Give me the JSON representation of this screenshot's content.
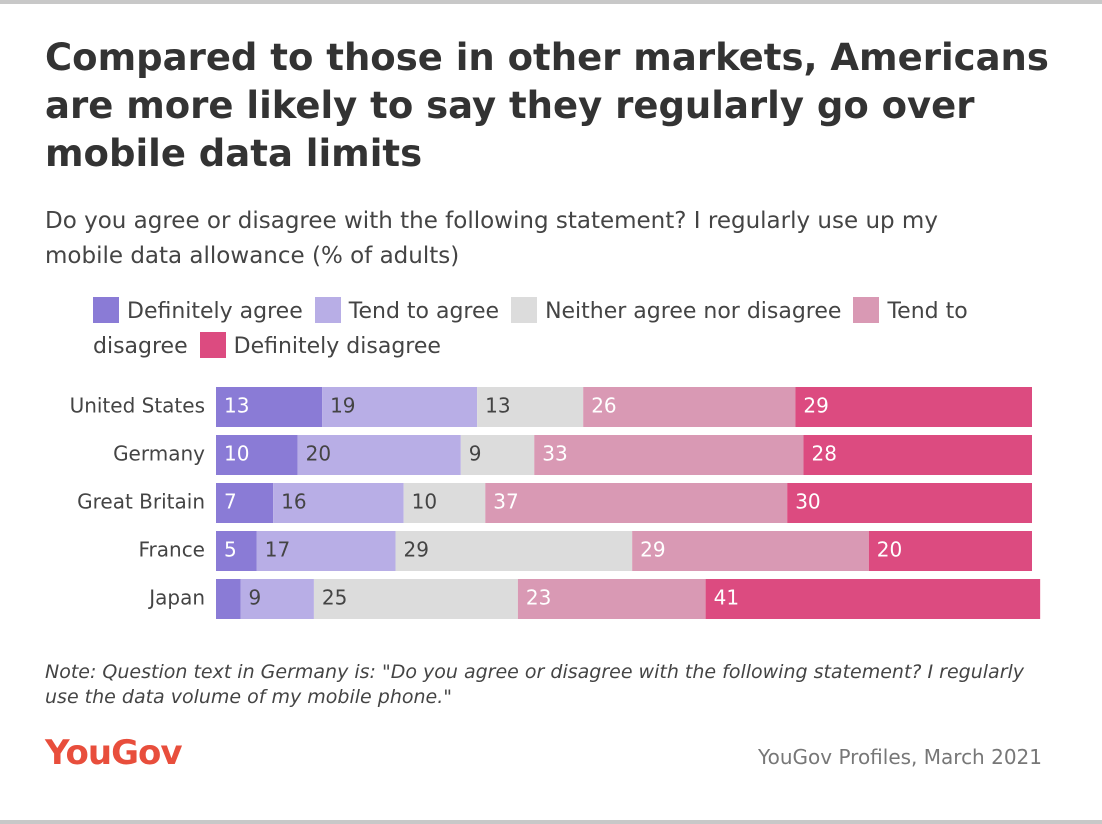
{
  "chart_data": {
    "type": "stacked-bar-horizontal",
    "title": "Compared to those in other markets, Americans are more likely to say they regularly go over mobile data limits",
    "subtitle": "Do you agree or disagree with the following statement? I regularly use up my mobile data allowance (% of adults)",
    "categories": [
      "United States",
      "Germany",
      "Great Britain",
      "France",
      "Japan"
    ],
    "series": [
      {
        "name": "Definitely agree",
        "color": "#8a7bd6",
        "values": [
          13,
          10,
          7,
          5,
          3
        ]
      },
      {
        "name": "Tend to agree",
        "color": "#b8aee6",
        "values": [
          19,
          20,
          16,
          17,
          9
        ]
      },
      {
        "name": "Neither agree nor disagree",
        "color": "#dcdcdc",
        "values": [
          13,
          9,
          10,
          29,
          25
        ]
      },
      {
        "name": "Tend to disagree",
        "color": "#d999b4",
        "values": [
          26,
          33,
          37,
          29,
          23
        ]
      },
      {
        "name": "Definitely disagree",
        "color": "#dc4b80",
        "values": [
          29,
          28,
          30,
          20,
          41
        ]
      }
    ],
    "note": "Note: Question text in Germany is: \"Do you agree or disagree with the following statement? I regularly use the data volume of my mobile phone.\"",
    "logo": "YouGov",
    "source": "YouGov Profiles, March 2021"
  }
}
